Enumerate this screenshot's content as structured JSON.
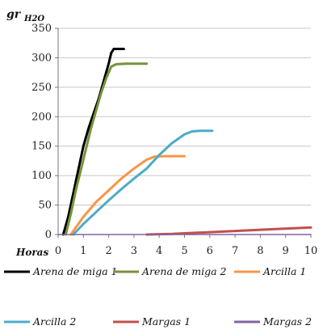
{
  "chart_data": {
    "type": "line",
    "ylabel": "gr",
    "ylabel_sub": "H2O",
    "xlabel": "Horas",
    "xlim": [
      0,
      10
    ],
    "ylim": [
      0,
      350
    ],
    "xticks": [
      0,
      1,
      2,
      3,
      4,
      5,
      6,
      7,
      8,
      9,
      10
    ],
    "xtick_labels": [
      "0",
      "1",
      "2",
      "3",
      "4",
      "5",
      "6",
      "7",
      "8",
      "9",
      "10"
    ],
    "yticks": [
      0,
      50,
      100,
      150,
      200,
      250,
      300,
      350
    ],
    "ytick_labels": [
      "0",
      "50",
      "100",
      "150",
      "200",
      "250",
      "300",
      "350"
    ],
    "grid": true,
    "legend_position": "bottom",
    "series": [
      {
        "name": "Arena de miga 1",
        "color": "#000000",
        "points": [
          [
            0.2,
            0
          ],
          [
            0.4,
            30
          ],
          [
            0.6,
            70
          ],
          [
            0.8,
            110
          ],
          [
            1.0,
            150
          ],
          [
            1.2,
            180
          ],
          [
            1.4,
            205
          ],
          [
            1.6,
            230
          ],
          [
            1.8,
            260
          ],
          [
            2.0,
            290
          ],
          [
            2.1,
            308
          ],
          [
            2.2,
            315
          ],
          [
            2.6,
            315
          ]
        ]
      },
      {
        "name": "Arena de miga 2",
        "color": "#77933C",
        "points": [
          [
            0.3,
            0
          ],
          [
            0.5,
            35
          ],
          [
            0.7,
            75
          ],
          [
            0.9,
            110
          ],
          [
            1.1,
            145
          ],
          [
            1.3,
            180
          ],
          [
            1.5,
            210
          ],
          [
            1.7,
            240
          ],
          [
            1.9,
            265
          ],
          [
            2.1,
            285
          ],
          [
            2.3,
            289
          ],
          [
            2.7,
            290
          ],
          [
            3.5,
            290
          ]
        ]
      },
      {
        "name": "Arcilla 1",
        "color": "#F79646",
        "points": [
          [
            0.5,
            0
          ],
          [
            1.0,
            30
          ],
          [
            1.5,
            55
          ],
          [
            2.0,
            75
          ],
          [
            2.5,
            95
          ],
          [
            3.0,
            112
          ],
          [
            3.5,
            127
          ],
          [
            3.8,
            132
          ],
          [
            4.2,
            133
          ],
          [
            5.0,
            133
          ]
        ]
      },
      {
        "name": "Arcilla 2",
        "color": "#4BACC6",
        "points": [
          [
            0.6,
            0
          ],
          [
            1.0,
            18
          ],
          [
            1.5,
            38
          ],
          [
            2.0,
            58
          ],
          [
            2.5,
            77
          ],
          [
            3.0,
            95
          ],
          [
            3.5,
            112
          ],
          [
            4.0,
            135
          ],
          [
            4.5,
            155
          ],
          [
            5.0,
            170
          ],
          [
            5.3,
            175
          ],
          [
            5.6,
            176
          ],
          [
            6.1,
            176
          ]
        ]
      },
      {
        "name": "Margas 1",
        "color": "#C0504D",
        "points": [
          [
            3.5,
            0
          ],
          [
            4.5,
            1
          ],
          [
            5.5,
            3
          ],
          [
            6.5,
            5
          ],
          [
            7.5,
            7
          ],
          [
            8.5,
            9
          ],
          [
            9.5,
            11
          ],
          [
            10.0,
            12
          ]
        ]
      },
      {
        "name": "Margas 2",
        "color": "#8064A2",
        "points": [
          [
            0.0,
            0
          ],
          [
            10.0,
            0
          ]
        ]
      }
    ]
  }
}
